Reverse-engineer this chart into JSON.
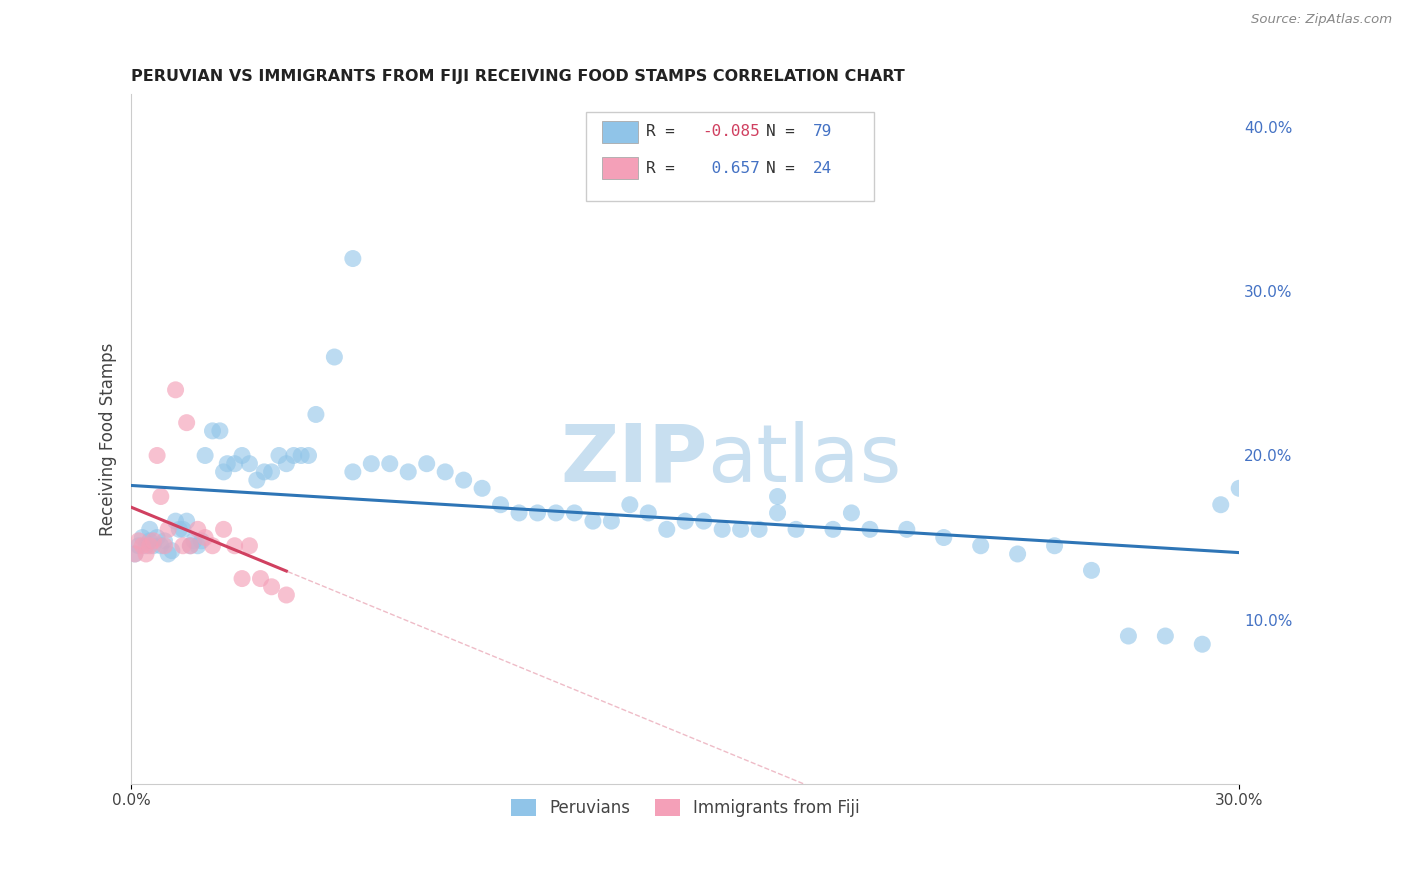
{
  "title": "PERUVIAN VS IMMIGRANTS FROM FIJI RECEIVING FOOD STAMPS CORRELATION CHART",
  "source": "Source: ZipAtlas.com",
  "ylabel": "Receiving Food Stamps",
  "xlim": [
    0.0,
    0.3
  ],
  "ylim": [
    0.0,
    0.42
  ],
  "legend_labels": [
    "Peruvians",
    "Immigrants from Fiji"
  ],
  "r_blue": -0.085,
  "n_blue": 79,
  "r_pink": 0.657,
  "n_pink": 24,
  "blue_scatter_x": [
    0.001,
    0.002,
    0.003,
    0.004,
    0.005,
    0.005,
    0.006,
    0.007,
    0.008,
    0.009,
    0.01,
    0.011,
    0.012,
    0.013,
    0.014,
    0.015,
    0.016,
    0.017,
    0.018,
    0.019,
    0.02,
    0.022,
    0.024,
    0.025,
    0.026,
    0.028,
    0.03,
    0.032,
    0.034,
    0.036,
    0.038,
    0.04,
    0.042,
    0.044,
    0.046,
    0.048,
    0.05,
    0.055,
    0.06,
    0.065,
    0.07,
    0.075,
    0.08,
    0.085,
    0.09,
    0.095,
    0.1,
    0.105,
    0.11,
    0.115,
    0.12,
    0.125,
    0.13,
    0.135,
    0.14,
    0.145,
    0.15,
    0.155,
    0.16,
    0.165,
    0.17,
    0.175,
    0.18,
    0.19,
    0.195,
    0.2,
    0.21,
    0.22,
    0.23,
    0.24,
    0.25,
    0.26,
    0.27,
    0.28,
    0.29,
    0.295,
    0.3,
    0.175,
    0.06
  ],
  "blue_scatter_y": [
    0.14,
    0.145,
    0.15,
    0.145,
    0.148,
    0.155,
    0.145,
    0.15,
    0.145,
    0.148,
    0.14,
    0.142,
    0.16,
    0.155,
    0.155,
    0.16,
    0.145,
    0.148,
    0.145,
    0.148,
    0.2,
    0.215,
    0.215,
    0.19,
    0.195,
    0.195,
    0.2,
    0.195,
    0.185,
    0.19,
    0.19,
    0.2,
    0.195,
    0.2,
    0.2,
    0.2,
    0.225,
    0.26,
    0.19,
    0.195,
    0.195,
    0.19,
    0.195,
    0.19,
    0.185,
    0.18,
    0.17,
    0.165,
    0.165,
    0.165,
    0.165,
    0.16,
    0.16,
    0.17,
    0.165,
    0.155,
    0.16,
    0.16,
    0.155,
    0.155,
    0.155,
    0.165,
    0.155,
    0.155,
    0.165,
    0.155,
    0.155,
    0.15,
    0.145,
    0.14,
    0.145,
    0.13,
    0.09,
    0.09,
    0.085,
    0.17,
    0.18,
    0.175,
    0.32
  ],
  "pink_scatter_x": [
    0.001,
    0.002,
    0.003,
    0.004,
    0.005,
    0.006,
    0.007,
    0.008,
    0.009,
    0.01,
    0.012,
    0.014,
    0.015,
    0.016,
    0.018,
    0.02,
    0.022,
    0.025,
    0.028,
    0.03,
    0.032,
    0.035,
    0.038,
    0.042
  ],
  "pink_scatter_y": [
    0.14,
    0.148,
    0.145,
    0.14,
    0.145,
    0.148,
    0.2,
    0.175,
    0.145,
    0.155,
    0.24,
    0.145,
    0.22,
    0.145,
    0.155,
    0.15,
    0.145,
    0.155,
    0.145,
    0.125,
    0.145,
    0.125,
    0.12,
    0.115
  ],
  "blue_color": "#90c4e8",
  "pink_color": "#f4a0b8",
  "blue_line_color": "#2e75b6",
  "pink_line_color": "#d04060",
  "ref_line_color": "#e8a0b0",
  "watermark_color": "#c8dff0",
  "background_color": "#ffffff",
  "grid_color": "#c8c8c8"
}
